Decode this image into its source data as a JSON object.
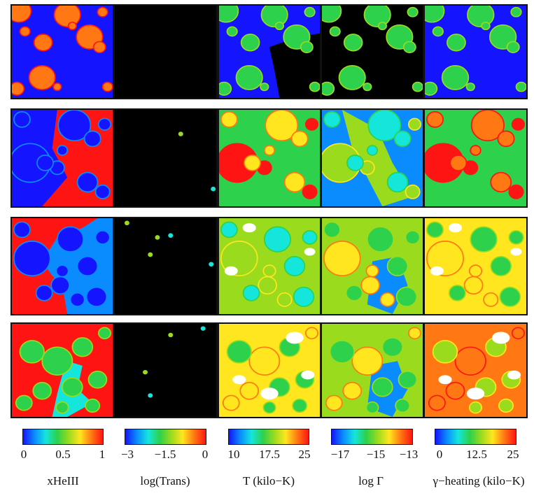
{
  "figure": {
    "rows": 4,
    "columns": [
      {
        "label": "xHeIII",
        "ticks": [
          "0",
          "0.5",
          "1"
        ]
      },
      {
        "label": "log(Trans)",
        "ticks": [
          "−3",
          "−1.5",
          "0"
        ]
      },
      {
        "label": "T (kilo−K)",
        "ticks": [
          "10",
          "17.5",
          "25"
        ]
      },
      {
        "label": "log Γ",
        "ticks": [
          "−17",
          "−15",
          "−13"
        ]
      },
      {
        "label": "γ−heating (kilo−K)",
        "ticks": [
          "0",
          "12.5",
          "25"
        ]
      }
    ],
    "colormap": [
      "#1414ff",
      "#0a8cff",
      "#14e6dc",
      "#2dd14b",
      "#9adb1e",
      "#ffe61e",
      "#ff7814",
      "#ff1414"
    ]
  }
}
